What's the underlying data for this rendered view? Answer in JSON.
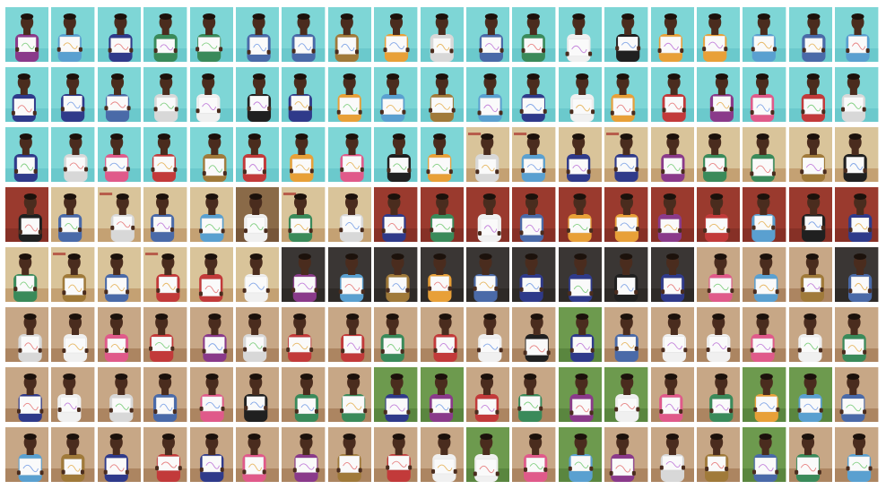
{
  "mosaic": {
    "rows": [
      {
        "scenes": [
          "teal",
          "teal",
          "teal",
          "teal",
          "teal",
          "teal",
          "teal",
          "teal",
          "teal",
          "teal",
          "teal",
          "teal",
          "teal",
          "teal",
          "teal",
          "teal",
          "teal",
          "teal",
          "teal"
        ]
      },
      {
        "scenes": [
          "teal",
          "teal",
          "teal",
          "teal",
          "teal",
          "teal",
          "teal",
          "teal",
          "teal",
          "teal",
          "teal",
          "teal",
          "teal",
          "teal",
          "teal",
          "teal",
          "teal",
          "teal",
          "teal"
        ]
      },
      {
        "scenes": [
          "teal",
          "teal",
          "teal",
          "teal",
          "teal",
          "teal",
          "teal",
          "teal",
          "teal",
          "teal",
          "beige",
          "beige",
          "beige",
          "beige",
          "beige",
          "beige",
          "beige",
          "beige",
          "beige"
        ]
      },
      {
        "scenes": [
          "maroon",
          "beige",
          "beige",
          "beige",
          "beige",
          "brown",
          "beige",
          "beige",
          "maroon",
          "maroon",
          "maroon",
          "maroon",
          "maroon",
          "maroon",
          "maroon",
          "maroon",
          "maroon",
          "maroon",
          "maroon"
        ]
      },
      {
        "scenes": [
          "beige",
          "beige",
          "beige",
          "beige",
          "beige",
          "beige",
          "dark",
          "dark",
          "dark",
          "dark",
          "dark",
          "dark",
          "dark",
          "dark",
          "dark",
          "outdoor",
          "outdoor",
          "outdoor",
          "dark"
        ]
      },
      {
        "scenes": [
          "outdoor",
          "outdoor",
          "outdoor",
          "outdoor",
          "outdoor",
          "outdoor",
          "outdoor",
          "outdoor",
          "outdoor",
          "outdoor",
          "outdoor",
          "outdoor",
          "green",
          "outdoor",
          "outdoor",
          "outdoor",
          "outdoor",
          "outdoor",
          "outdoor"
        ]
      },
      {
        "scenes": [
          "outdoor",
          "outdoor",
          "outdoor",
          "outdoor",
          "outdoor",
          "outdoor",
          "outdoor",
          "outdoor",
          "green",
          "green",
          "outdoor",
          "outdoor",
          "green",
          "green",
          "outdoor",
          "outdoor",
          "green",
          "green",
          "outdoor"
        ]
      },
      {
        "scenes": [
          "outdoor",
          "outdoor",
          "outdoor",
          "outdoor",
          "outdoor",
          "outdoor",
          "outdoor",
          "outdoor",
          "outdoor",
          "outdoor",
          "green",
          "outdoor",
          "green",
          "outdoor",
          "outdoor",
          "outdoor",
          "green",
          "outdoor",
          "outdoor"
        ]
      }
    ],
    "palette": {
      "teal": {
        "bg": "#7ed6d6",
        "floor": "#5fc0c4"
      },
      "beige": {
        "bg": "#d9c49a",
        "floor": "#b58a5a"
      },
      "maroon": {
        "bg": "#9a3a2e",
        "floor": "#7a2a22"
      },
      "brown": {
        "bg": "#8a6a48",
        "floor": "#6a4a30"
      },
      "dark": {
        "bg": "#3a3634",
        "floor": "#26231f"
      },
      "outdoor": {
        "bg": "#c7a786",
        "floor": "#9a6e4a"
      },
      "green": {
        "bg": "#6d9a4e",
        "floor": "#4e7a36"
      }
    },
    "shirt_colors": [
      "#2f3a8a",
      "#d8d8d8",
      "#c23a3a",
      "#4a6aa8",
      "#e8a038",
      "#3a8a5a",
      "#8a3a8a",
      "#202020",
      "#e05a8a",
      "#f0f0f0",
      "#5aa0d0",
      "#a07a3a"
    ],
    "skin_color": "#4a2c1e",
    "paper_color": "#fafafa",
    "ink_colors": [
      "#e05a5a",
      "#5a8ae0",
      "#5ac05a",
      "#e0a030",
      "#b05ad0"
    ]
  }
}
